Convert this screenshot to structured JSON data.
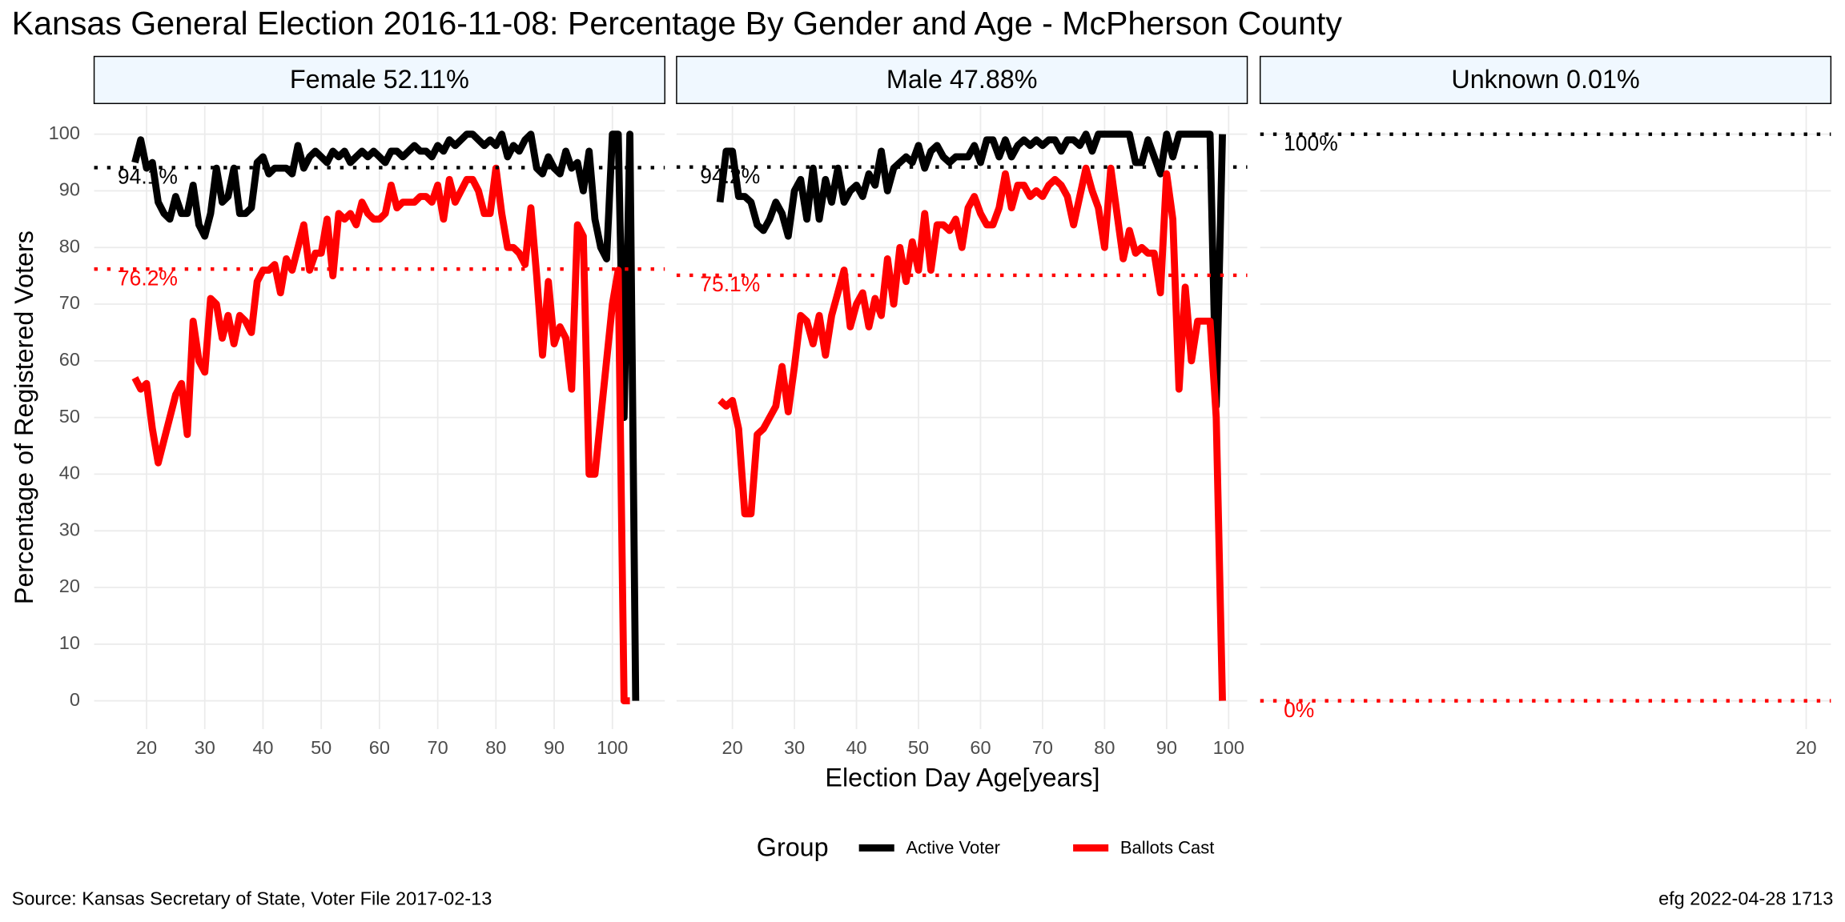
{
  "header": {
    "title": "Kansas General Election 2016-11-08:  Percentage By Gender and Age - McPherson County"
  },
  "axes": {
    "x_label": "Election Day Age[years]",
    "y_label": "Percentage of Registered Voters"
  },
  "legend_title": "Group",
  "footer": {
    "source": "Source:  Kansas Secretary of State, Voter File  2017-02-13",
    "credit": "efg 2022-04-28 1713"
  },
  "chart_data": [
    {
      "type": "line",
      "title": "Female 52.11%",
      "x": [
        18,
        19,
        20,
        21,
        22,
        23,
        24,
        25,
        26,
        27,
        28,
        29,
        30,
        31,
        32,
        33,
        34,
        35,
        36,
        37,
        38,
        39,
        40,
        41,
        42,
        43,
        44,
        45,
        46,
        47,
        48,
        49,
        50,
        51,
        52,
        53,
        54,
        55,
        56,
        57,
        58,
        59,
        60,
        61,
        62,
        63,
        64,
        65,
        66,
        67,
        68,
        69,
        70,
        71,
        72,
        73,
        74,
        75,
        76,
        77,
        78,
        79,
        80,
        81,
        82,
        83,
        84,
        85,
        86,
        87,
        88,
        89,
        90,
        91,
        92,
        93,
        94,
        95,
        96,
        97,
        98,
        99,
        100,
        101,
        102,
        103,
        104
      ],
      "series": [
        {
          "name": "Active Voter",
          "color": "#000000",
          "values": [
            95,
            99,
            94,
            95,
            88,
            86,
            85,
            89,
            86,
            86,
            91,
            84,
            82,
            86,
            94,
            88,
            89,
            94,
            86,
            86,
            87,
            95,
            96,
            93,
            94,
            94,
            94,
            93,
            98,
            94,
            96,
            97,
            96,
            95,
            97,
            96,
            97,
            95,
            96,
            97,
            96,
            97,
            96,
            95,
            97,
            97,
            96,
            97,
            98,
            97,
            97,
            96,
            98,
            97,
            99,
            98,
            99,
            100,
            100,
            99,
            98,
            99,
            98,
            100,
            96,
            98,
            97,
            99,
            100,
            94,
            93,
            96,
            94,
            93,
            97,
            94,
            95,
            90,
            97,
            85,
            80,
            78,
            100,
            100,
            50,
            100,
            0
          ]
        },
        {
          "name": "Ballots Cast",
          "color": "#ff0000",
          "values": [
            57,
            55,
            56,
            48,
            42,
            46,
            50,
            54,
            56,
            47,
            67,
            60,
            58,
            71,
            70,
            64,
            68,
            63,
            68,
            67,
            65,
            74,
            76,
            76,
            77,
            72,
            78,
            76,
            80,
            84,
            76,
            79,
            79,
            85,
            75,
            86,
            85,
            86,
            84,
            88,
            86,
            85,
            85,
            86,
            91,
            87,
            88,
            88,
            88,
            89,
            89,
            88,
            91,
            85,
            92,
            88,
            90,
            92,
            92,
            90,
            86,
            86,
            94,
            86,
            80,
            80,
            79,
            77,
            87,
            75,
            61,
            74,
            63,
            66,
            64,
            55,
            84,
            82,
            40,
            40,
            50,
            60,
            70,
            76,
            0,
            0,
            null
          ]
        }
      ],
      "reference_lines": [
        {
          "value": 94.1,
          "label": "94.1%",
          "color": "#000000"
        },
        {
          "value": 76.2,
          "label": "76.2%",
          "color": "#ff0000"
        }
      ],
      "xlim": [
        11,
        109
      ],
      "ylim": [
        -5,
        105
      ],
      "xticks": [
        20,
        30,
        40,
        50,
        60,
        70,
        80,
        90,
        100
      ],
      "yticks": [
        0,
        10,
        20,
        30,
        40,
        50,
        60,
        70,
        80,
        90,
        100
      ],
      "grid": true
    },
    {
      "type": "line",
      "title": "Male 47.88%",
      "x": [
        18,
        19,
        20,
        21,
        22,
        23,
        24,
        25,
        26,
        27,
        28,
        29,
        30,
        31,
        32,
        33,
        34,
        35,
        36,
        37,
        38,
        39,
        40,
        41,
        42,
        43,
        44,
        45,
        46,
        47,
        48,
        49,
        50,
        51,
        52,
        53,
        54,
        55,
        56,
        57,
        58,
        59,
        60,
        61,
        62,
        63,
        64,
        65,
        66,
        67,
        68,
        69,
        70,
        71,
        72,
        73,
        74,
        75,
        76,
        77,
        78,
        79,
        80,
        81,
        82,
        83,
        84,
        85,
        86,
        87,
        88,
        89,
        90,
        91,
        92,
        93,
        94,
        95,
        96,
        97,
        98,
        99
      ],
      "series": [
        {
          "name": "Active Voter",
          "color": "#000000",
          "values": [
            88,
            97,
            97,
            89,
            89,
            88,
            84,
            83,
            85,
            88,
            86,
            82,
            90,
            92,
            85,
            94,
            85,
            92,
            88,
            94,
            88,
            90,
            91,
            89,
            93,
            91,
            97,
            90,
            94,
            95,
            96,
            95,
            98,
            94,
            97,
            98,
            96,
            95,
            96,
            96,
            96,
            98,
            95,
            99,
            99,
            96,
            99,
            96,
            98,
            99,
            98,
            99,
            98,
            99,
            99,
            97,
            99,
            99,
            98,
            100,
            97,
            100,
            100,
            100,
            100,
            100,
            100,
            95,
            95,
            99,
            96,
            93,
            100,
            96,
            100,
            100,
            100,
            100,
            100,
            100,
            52,
            100
          ]
        },
        {
          "name": "Ballots Cast",
          "color": "#ff0000",
          "values": [
            53,
            52,
            53,
            48,
            33,
            33,
            47,
            48,
            50,
            52,
            59,
            51,
            59,
            68,
            67,
            63,
            68,
            61,
            68,
            72,
            76,
            66,
            70,
            72,
            66,
            71,
            68,
            78,
            70,
            80,
            74,
            81,
            76,
            86,
            76,
            84,
            84,
            83,
            85,
            80,
            87,
            89,
            86,
            84,
            84,
            87,
            93,
            87,
            91,
            91,
            89,
            90,
            89,
            91,
            92,
            91,
            89,
            84,
            89,
            94,
            90,
            87,
            80,
            94,
            86,
            78,
            83,
            79,
            80,
            79,
            79,
            72,
            93,
            85,
            55,
            73,
            60,
            67,
            67,
            67,
            50,
            0
          ]
        }
      ],
      "reference_lines": [
        {
          "value": 94.2,
          "label": "94.2%",
          "color": "#000000"
        },
        {
          "value": 75.1,
          "label": "75.1%",
          "color": "#ff0000"
        }
      ],
      "xlim": [
        11,
        103
      ],
      "ylim": [
        -5,
        105
      ],
      "xticks": [
        20,
        30,
        40,
        50,
        60,
        70,
        80,
        90,
        100
      ],
      "yticks": [
        0,
        10,
        20,
        30,
        40,
        50,
        60,
        70,
        80,
        90,
        100
      ],
      "grid": true
    },
    {
      "type": "line",
      "title": "Unknown 0.01%",
      "x": [
        20
      ],
      "series": [
        {
          "name": "Active Voter",
          "color": "#000000",
          "values": [
            100
          ]
        },
        {
          "name": "Ballots Cast",
          "color": "#ff0000",
          "values": [
            0
          ]
        }
      ],
      "reference_lines": [
        {
          "value": 100,
          "label": "100%",
          "color": "#000000"
        },
        {
          "value": 0,
          "label": "0%",
          "color": "#ff0000"
        }
      ],
      "xlim": [
        -2.1,
        21
      ],
      "ylim": [
        -5,
        105
      ],
      "xticks": [
        20
      ],
      "yticks": [
        0,
        10,
        20,
        30,
        40,
        50,
        60,
        70,
        80,
        90,
        100
      ],
      "grid": true
    }
  ]
}
